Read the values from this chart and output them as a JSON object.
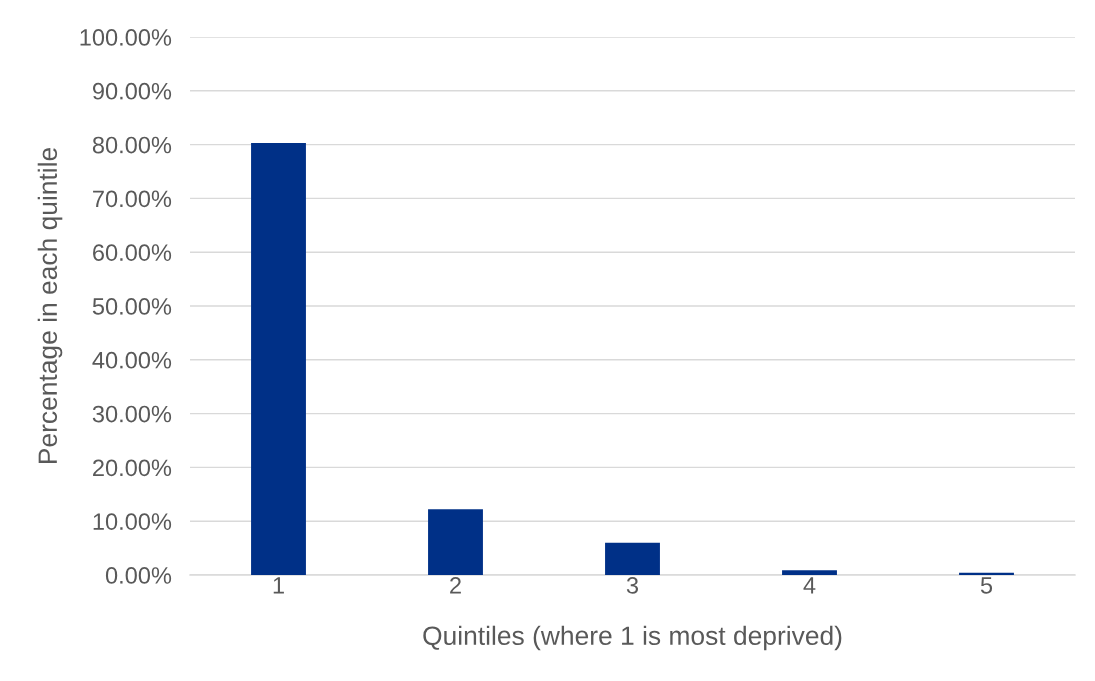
{
  "chart_data": {
    "type": "bar",
    "categories": [
      "1",
      "2",
      "3",
      "4",
      "5"
    ],
    "values": [
      80.3,
      12.2,
      6.0,
      0.9,
      0.4
    ],
    "color": "#003087",
    "xlabel": "Quintiles (where 1 is most deprived)",
    "ylabel": "Percentage in each quintile",
    "ylim": [
      0,
      100
    ],
    "yticks": [
      {
        "value": 0,
        "label": "0.00%"
      },
      {
        "value": 10,
        "label": "10.00%"
      },
      {
        "value": 20,
        "label": "20.00%"
      },
      {
        "value": 30,
        "label": "30.00%"
      },
      {
        "value": 40,
        "label": "40.00%"
      },
      {
        "value": 50,
        "label": "50.00%"
      },
      {
        "value": 60,
        "label": "60.00%"
      },
      {
        "value": 70,
        "label": "70.00%"
      },
      {
        "value": 80,
        "label": "80.00%"
      },
      {
        "value": 90,
        "label": "90.00%"
      },
      {
        "value": 100,
        "label": "100.00%"
      }
    ],
    "grid": "y"
  }
}
